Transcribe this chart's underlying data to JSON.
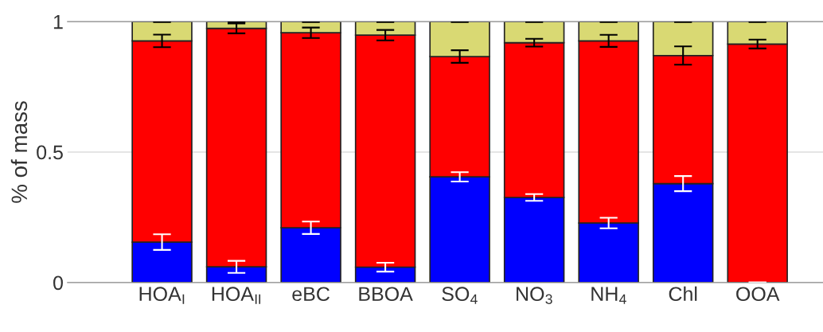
{
  "chart_data": {
    "type": "bar",
    "stacked": true,
    "ylabel": "% of mass",
    "categories": [
      "HOA$_{I}$",
      "HOA$_{II}$",
      "eBC",
      "BBOA",
      "SO$_{4}$",
      "NO$_{3}$",
      "NH$_{4}$",
      "Chl",
      "OOA"
    ],
    "series": [
      {
        "color": "#0000ff",
        "values": [
          0.155,
          0.06,
          0.21,
          0.059,
          0.405,
          0.326,
          0.228,
          0.379,
          0
        ],
        "errors": [
          0.03,
          0.023,
          0.024,
          0.017,
          0.018,
          0.013,
          0.02,
          0.029,
          0
        ]
      },
      {
        "color": "#ff0000",
        "values": [
          0.771,
          0.914,
          0.747,
          0.889,
          0.461,
          0.593,
          0.698,
          0.491,
          0.914
        ],
        "errors": [
          0.024,
          0.019,
          0.02,
          0.02,
          0.024,
          0.015,
          0.023,
          0.035,
          0.017
        ]
      },
      {
        "color": "#d9d973",
        "values": [
          0.074,
          0.026,
          0.043,
          0.052,
          0.134,
          0.081,
          0.074,
          0.13,
          0.086
        ],
        "errors": [
          0.002,
          0.002,
          0.002,
          0.002,
          0.002,
          0.002,
          0.002,
          0.002,
          0.002
        ]
      }
    ],
    "ylim": [
      0,
      1
    ],
    "yticks": [
      0,
      0.5,
      1
    ],
    "grid": "y"
  }
}
